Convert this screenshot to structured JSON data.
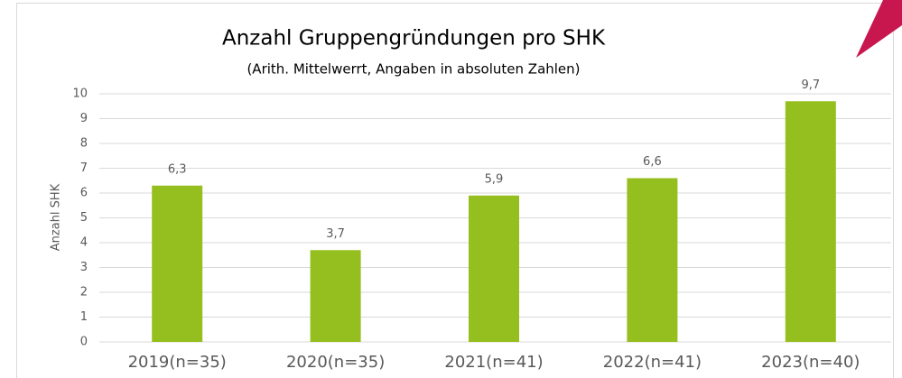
{
  "chart_data": {
    "type": "bar",
    "title": "Anzahl Gruppengründungen pro SHK",
    "subtitle": "(Arith. Mittelwerrt, Angaben in absoluten Zahlen)",
    "y_label": "Anzahl SHK",
    "categories": [
      "2019(n=35)",
      "2020(n=35)",
      "2021(n=41)",
      "2022(n=41)",
      "2023(n=40)"
    ],
    "values": [
      6.3,
      3.7,
      5.9,
      6.6,
      9.7
    ],
    "value_labels": [
      "6,3",
      "3,7",
      "5,9",
      "6,6",
      "9,7"
    ],
    "color": "#95bf1e",
    "ylim": [
      0,
      10
    ],
    "yticks": [
      0,
      1,
      2,
      3,
      4,
      5,
      6,
      7,
      8,
      9,
      10
    ],
    "grid": true
  }
}
